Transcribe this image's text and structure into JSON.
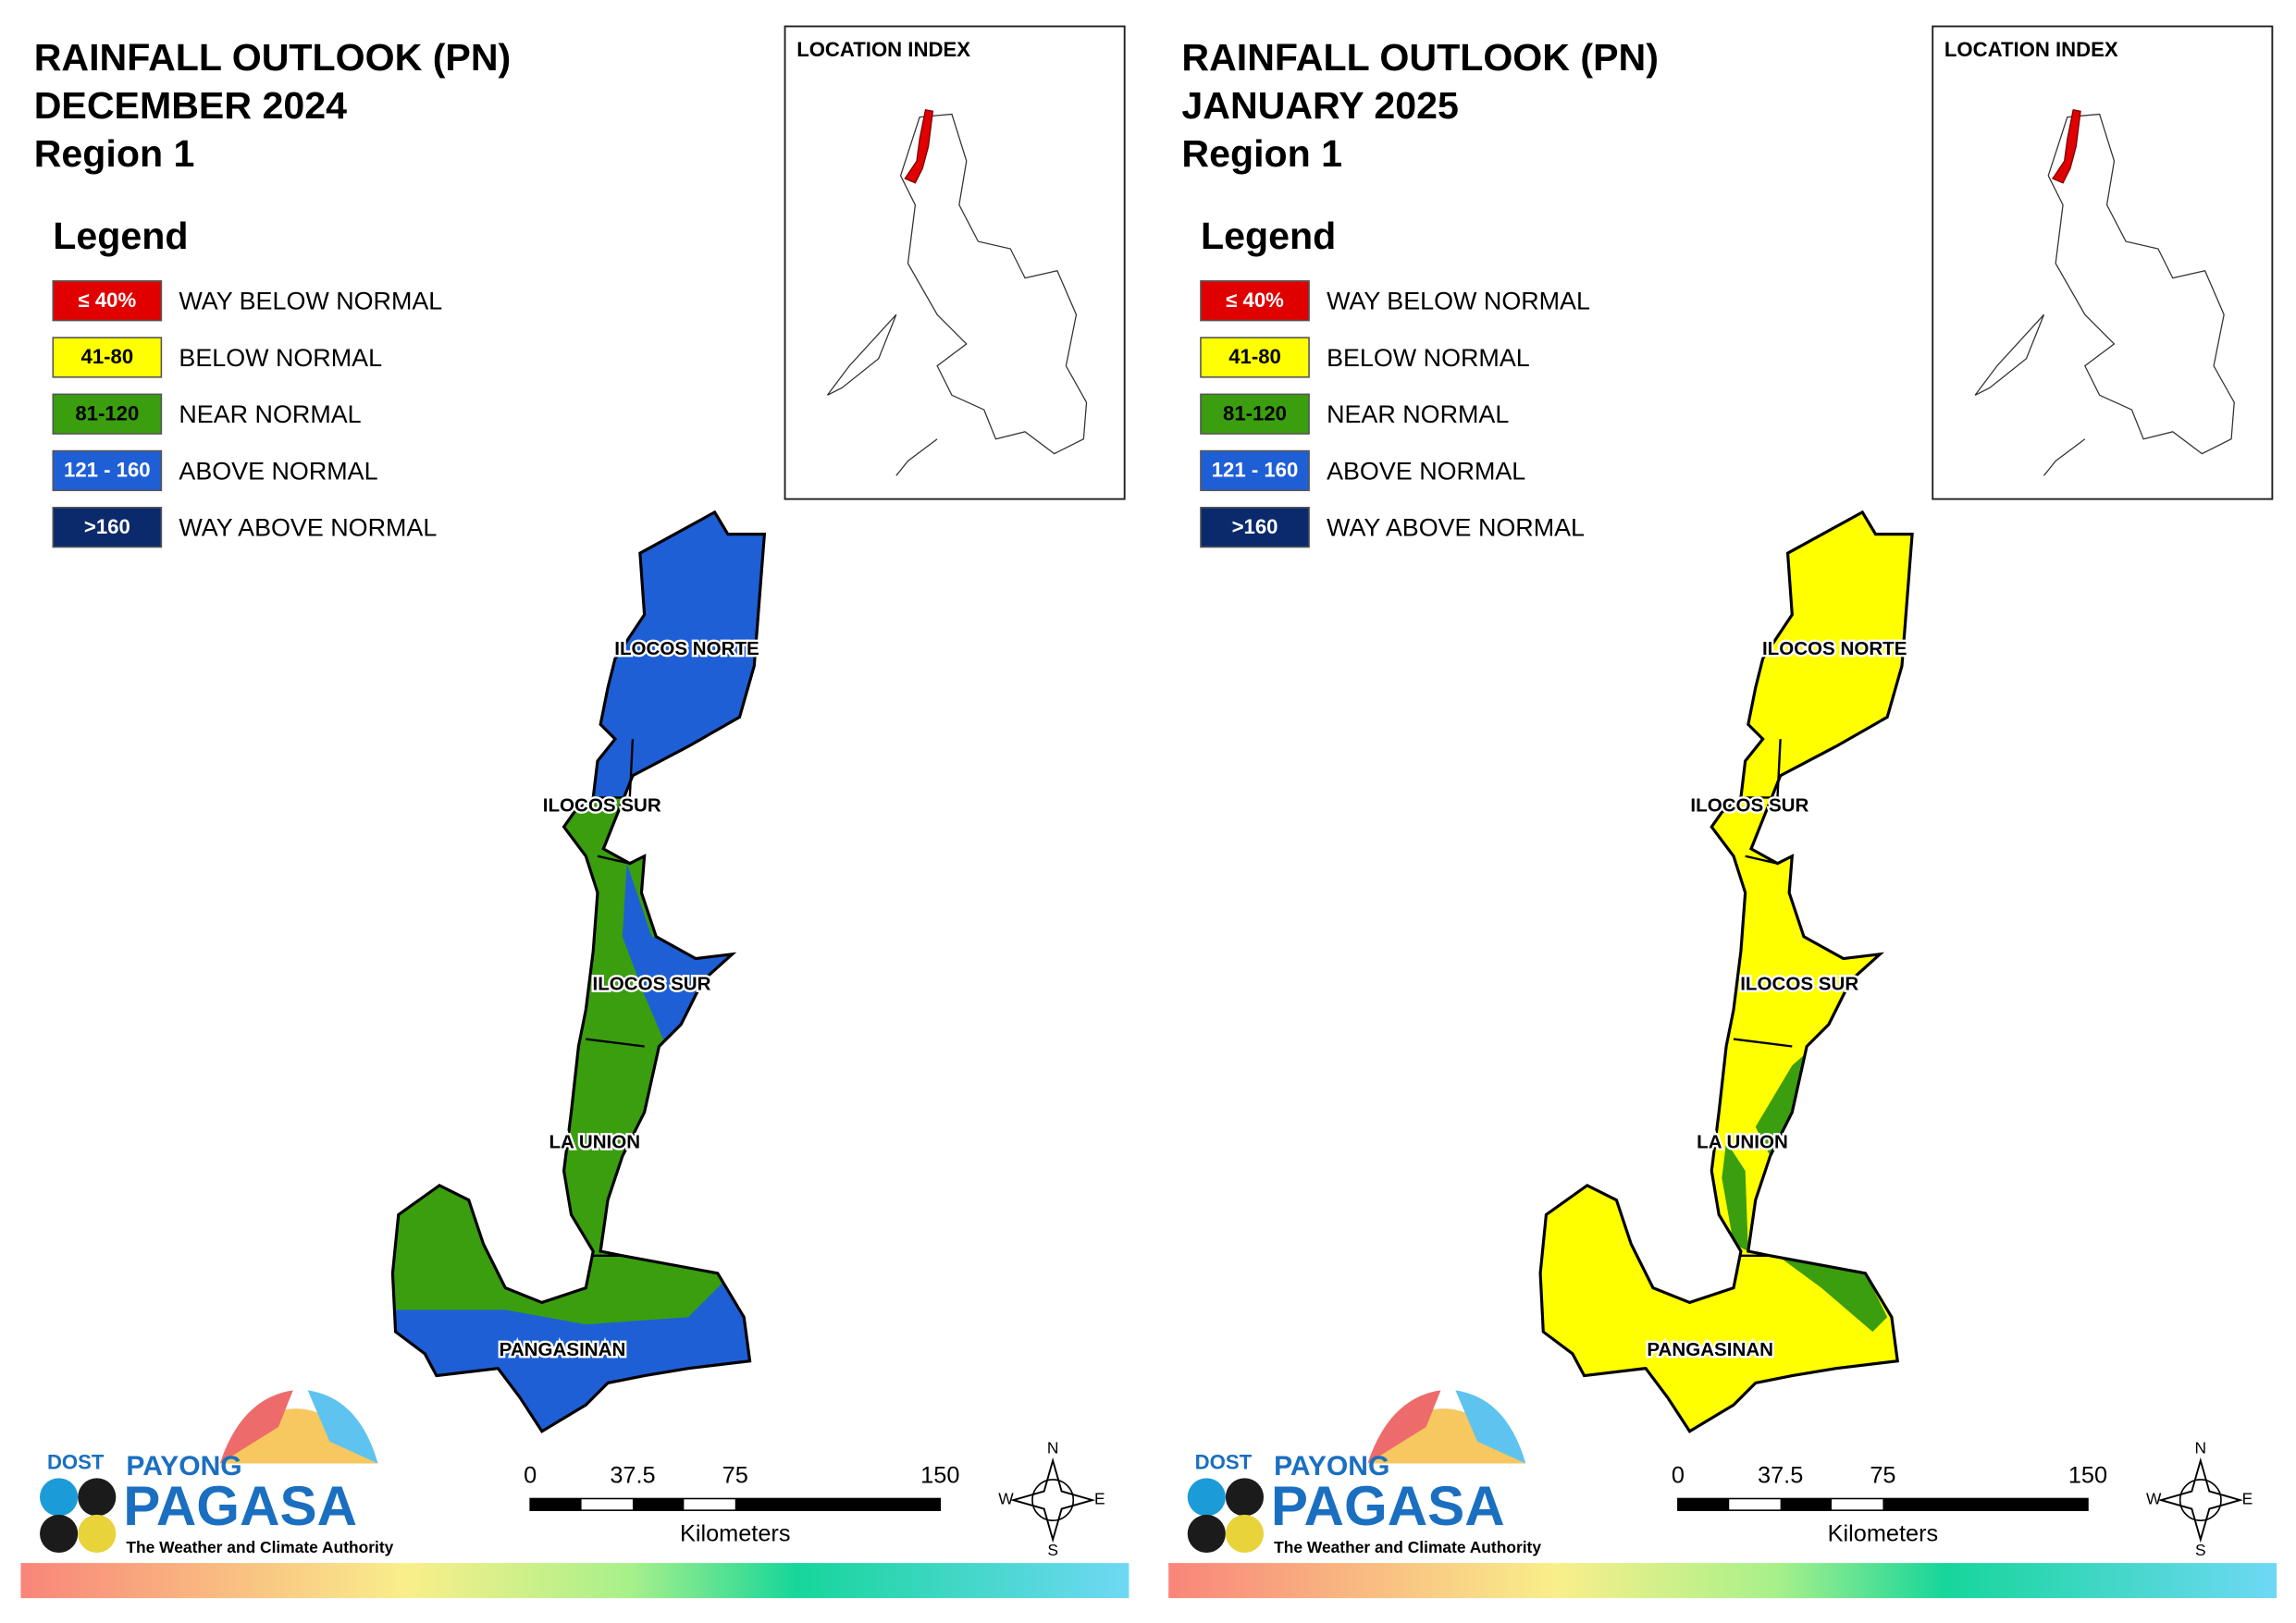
{
  "panels": [
    {
      "title": [
        "RAINFALL OUTLOOK (PN)",
        "DECEMBER 2024",
        "Region 1"
      ],
      "fills": {
        "base": 2,
        "north": 3,
        "east": 3,
        "south": 3,
        "patch": 2
      }
    },
    {
      "title": [
        "RAINFALL OUTLOOK (PN)",
        "JANUARY 2025",
        "Region 1"
      ],
      "fills": {
        "base": 1,
        "north": 1,
        "east": 2,
        "south": 2,
        "patch": 2
      }
    }
  ],
  "legend": {
    "title": "Legend",
    "items": [
      {
        "key": "≤ 40%",
        "label": "WAY BELOW NORMAL",
        "color": "#e00000",
        "text_color": "#ffffff"
      },
      {
        "key": "41-80",
        "label": "BELOW NORMAL",
        "color": "#ffff00",
        "text_color": "#000000"
      },
      {
        "key": "81-120",
        "label": "NEAR NORMAL",
        "color": "#3a9e0f",
        "text_color": "#000000"
      },
      {
        "key": "121 - 160",
        "label": "ABOVE NORMAL",
        "color": "#1f5fd6",
        "text_color": "#ffffff"
      },
      {
        "key": ">160",
        "label": "WAY ABOVE NORMAL",
        "color": "#0a2a6b",
        "text_color": "#ffffff"
      }
    ]
  },
  "location_index": "LOCATION INDEX",
  "provinces": [
    "ILOCOS NORTE",
    "ILOCOS SUR",
    "ILOCOS SUR",
    "LA UNION",
    "PANGASINAN"
  ],
  "scale": {
    "ticks": [
      0,
      37.5,
      75,
      150
    ],
    "unit": "Kilometers"
  },
  "compass": [
    "N",
    "E",
    "S",
    "W"
  ],
  "logo": {
    "dost": "DOST",
    "payong": "PAYONG",
    "pagasa": "PAGASA",
    "tagline": "The Weather and Climate Authority"
  }
}
